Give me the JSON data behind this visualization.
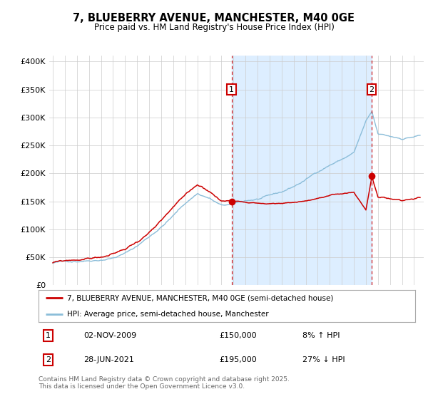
{
  "title": "7, BLUEBERRY AVENUE, MANCHESTER, M40 0GE",
  "subtitle": "Price paid vs. HM Land Registry's House Price Index (HPI)",
  "ylabel_ticks": [
    "£0",
    "£50K",
    "£100K",
    "£150K",
    "£200K",
    "£250K",
    "£300K",
    "£350K",
    "£400K"
  ],
  "ytick_values": [
    0,
    50000,
    100000,
    150000,
    200000,
    250000,
    300000,
    350000,
    400000
  ],
  "ylim": [
    0,
    410000
  ],
  "xlim_start": 1994.7,
  "xlim_end": 2025.8,
  "red_color": "#cc0000",
  "blue_color": "#8bbdd9",
  "shade_color": "#ddeeff",
  "marker1_x": 2009.84,
  "marker1_y": 150000,
  "marker2_x": 2021.48,
  "marker2_y": 195000,
  "marker1_label": "1",
  "marker2_label": "2",
  "marker1_date": "02-NOV-2009",
  "marker1_price": "£150,000",
  "marker1_hpi": "8% ↑ HPI",
  "marker2_date": "28-JUN-2021",
  "marker2_price": "£195,000",
  "marker2_hpi": "27% ↓ HPI",
  "legend_label_red": "7, BLUEBERRY AVENUE, MANCHESTER, M40 0GE (semi-detached house)",
  "legend_label_blue": "HPI: Average price, semi-detached house, Manchester",
  "footer": "Contains HM Land Registry data © Crown copyright and database right 2025.\nThis data is licensed under the Open Government Licence v3.0.",
  "background_color": "#ffffff",
  "grid_color": "#cccccc"
}
